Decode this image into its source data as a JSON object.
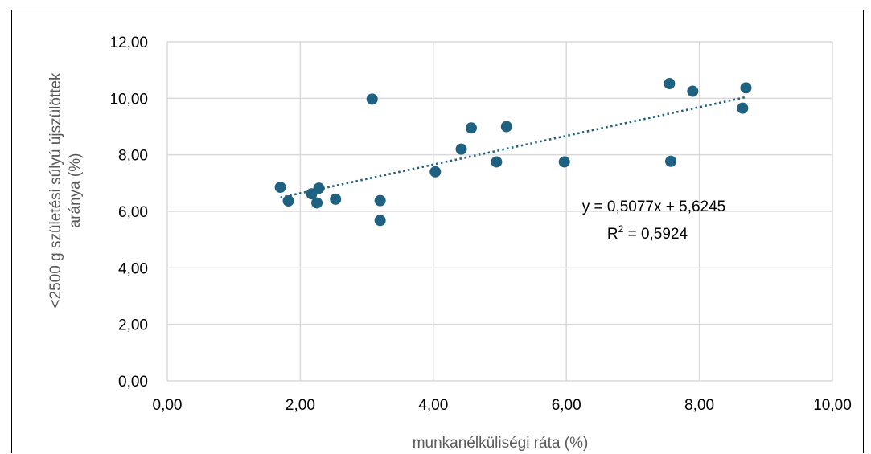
{
  "chart_data": {
    "type": "scatter",
    "xlabel": "munkanélküliségi ráta (%)",
    "ylabel_line1": "<2500 g születési súlyú újszülöttek",
    "ylabel_line2": "aránya (%)",
    "xlim": [
      0,
      10
    ],
    "ylim": [
      0,
      12
    ],
    "x_ticks": [
      "0,00",
      "2,00",
      "4,00",
      "6,00",
      "8,00",
      "10,00"
    ],
    "y_ticks": [
      "0,00",
      "2,00",
      "4,00",
      "6,00",
      "8,00",
      "10,00",
      "12,00"
    ],
    "grid": "vertical and horizontal",
    "legend": "none",
    "points": [
      {
        "x": 1.7,
        "y": 6.85
      },
      {
        "x": 1.82,
        "y": 6.37
      },
      {
        "x": 2.17,
        "y": 6.62
      },
      {
        "x": 2.25,
        "y": 6.3
      },
      {
        "x": 2.28,
        "y": 6.82
      },
      {
        "x": 2.53,
        "y": 6.43
      },
      {
        "x": 3.08,
        "y": 9.97
      },
      {
        "x": 3.2,
        "y": 6.38
      },
      {
        "x": 3.2,
        "y": 5.68
      },
      {
        "x": 4.03,
        "y": 7.4
      },
      {
        "x": 4.42,
        "y": 8.2
      },
      {
        "x": 4.57,
        "y": 8.95
      },
      {
        "x": 4.95,
        "y": 7.75
      },
      {
        "x": 5.1,
        "y": 9.0
      },
      {
        "x": 5.97,
        "y": 7.75
      },
      {
        "x": 7.55,
        "y": 10.52
      },
      {
        "x": 7.57,
        "y": 7.77
      },
      {
        "x": 7.9,
        "y": 10.25
      },
      {
        "x": 8.65,
        "y": 9.65
      },
      {
        "x": 8.7,
        "y": 10.37
      }
    ],
    "trendline": {
      "type": "linear",
      "slope": 0.5077,
      "intercept": 5.6245,
      "x_range": [
        1.7,
        8.7
      ],
      "style": "dotted",
      "equation_text": "y = 0,5077x + 5,6245",
      "r2_prefix": "R",
      "r2_sup": "2",
      "r2_value_text": " = 0,5924"
    },
    "colors": {
      "marker": "#1f6180",
      "trendline": "#1f6180",
      "grid": "#d9d9d9",
      "axis_title": "#595959"
    }
  }
}
